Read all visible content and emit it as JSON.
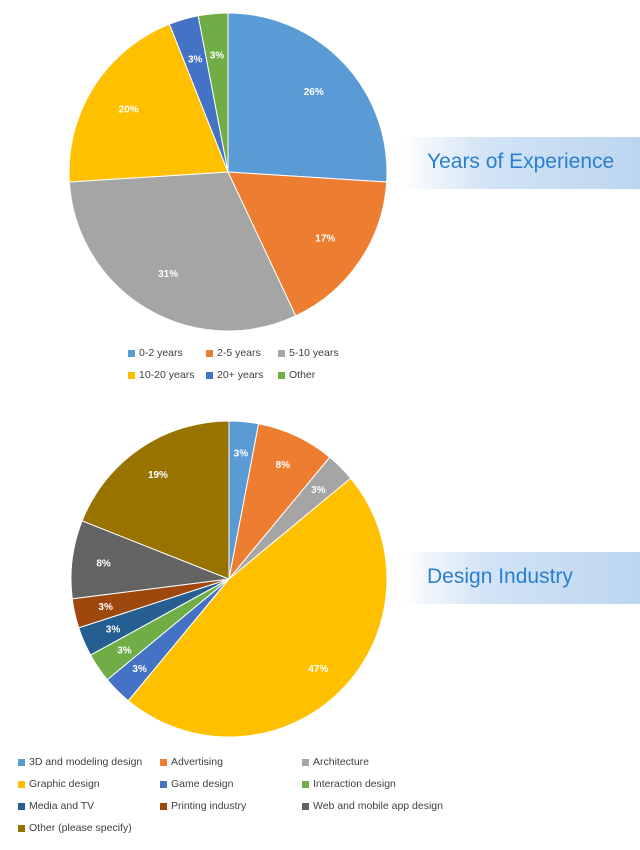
{
  "chart_data": [
    {
      "type": "pie",
      "title": "Years of Experience",
      "series": [
        {
          "label": "0-2 years",
          "value": 26,
          "pct_label": "26%",
          "color": "#5b9bd5"
        },
        {
          "label": "2-5 years",
          "value": 17,
          "pct_label": "17%",
          "color": "#ed7d31"
        },
        {
          "label": "5-10 years",
          "value": 31,
          "pct_label": "31%",
          "color": "#a5a5a5"
        },
        {
          "label": "10-20 years",
          "value": 20,
          "pct_label": "20%",
          "color": "#ffc000"
        },
        {
          "label": "20+ years",
          "value": 3,
          "pct_label": "3%",
          "color": "#4472c4"
        },
        {
          "label": "Other",
          "value": 3,
          "pct_label": "3%",
          "color": "#70ad47"
        }
      ],
      "legend_position": "bottom"
    },
    {
      "type": "pie",
      "title": "Design Industry",
      "series": [
        {
          "label": "3D and modeling design",
          "value": 3,
          "pct_label": "3%",
          "color": "#5b9bd5"
        },
        {
          "label": "Advertising",
          "value": 8,
          "pct_label": "8%",
          "color": "#ed7d31"
        },
        {
          "label": "Architecture",
          "value": 3,
          "pct_label": "3%",
          "color": "#a5a5a5"
        },
        {
          "label": "Graphic design",
          "value": 47,
          "pct_label": "47%",
          "color": "#ffc000"
        },
        {
          "label": "Game design",
          "value": 3,
          "pct_label": "3%",
          "color": "#4472c4"
        },
        {
          "label": "Interaction design",
          "value": 3,
          "pct_label": "3%",
          "color": "#70ad47"
        },
        {
          "label": "Media and TV",
          "value": 3,
          "pct_label": "3%",
          "color": "#255e91"
        },
        {
          "label": "Printing industry",
          "value": 3,
          "pct_label": "3%",
          "color": "#9e480e"
        },
        {
          "label": "Web and mobile app design",
          "value": 8,
          "pct_label": "8%",
          "color": "#636363"
        },
        {
          "label": "Other (please specify)",
          "value": 19,
          "pct_label": "19%",
          "color": "#997300"
        }
      ],
      "legend_position": "bottom"
    }
  ]
}
